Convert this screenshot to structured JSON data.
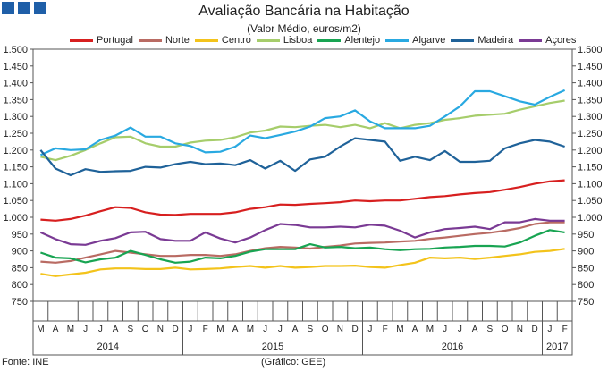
{
  "title": "Avaliação Bancária na Habitação",
  "subtitle": "(Valor Médio, euros/m2)",
  "source": "Fonte: INE",
  "credit": "(Gráfico: GEE)",
  "chart_data": {
    "type": "line",
    "ylim": [
      750,
      1500
    ],
    "yticks": [
      750,
      800,
      850,
      900,
      950,
      1000,
      1050,
      1100,
      1150,
      1200,
      1250,
      1300,
      1350,
      1400,
      1450,
      1500
    ],
    "ytick_labels": [
      "750",
      "800",
      "850",
      "900",
      "950",
      "1.000",
      "1.050",
      "1.100",
      "1.150",
      "1.200",
      "1.250",
      "1.300",
      "1.350",
      "1.400",
      "1.450",
      "1.500"
    ],
    "x": [
      "M",
      "A",
      "M",
      "J",
      "J",
      "A",
      "S",
      "O",
      "N",
      "D",
      "J",
      "F",
      "M",
      "A",
      "M",
      "J",
      "J",
      "A",
      "S",
      "O",
      "N",
      "D",
      "J",
      "F",
      "M",
      "A",
      "M",
      "J",
      "J",
      "A",
      "S",
      "O",
      "N",
      "D",
      "J",
      "F"
    ],
    "years": [
      {
        "label": "2014",
        "start": 0,
        "end": 9
      },
      {
        "label": "2015",
        "start": 10,
        "end": 21
      },
      {
        "label": "2016",
        "start": 22,
        "end": 33
      },
      {
        "label": "2017",
        "start": 34,
        "end": 35
      }
    ],
    "series": [
      {
        "name": "Portugal",
        "color": "#d71f1f",
        "values": [
          993,
          990,
          995,
          1005,
          1018,
          1030,
          1028,
          1015,
          1008,
          1007,
          1010,
          1010,
          1010,
          1015,
          1025,
          1030,
          1038,
          1037,
          1040,
          1042,
          1045,
          1050,
          1048,
          1050,
          1050,
          1055,
          1060,
          1063,
          1068,
          1072,
          1075,
          1082,
          1090,
          1100,
          1107,
          1110
        ]
      },
      {
        "name": "Norte",
        "color": "#b96b63",
        "values": [
          868,
          865,
          870,
          880,
          890,
          900,
          895,
          890,
          885,
          885,
          888,
          888,
          885,
          890,
          900,
          908,
          912,
          910,
          907,
          912,
          916,
          922,
          924,
          925,
          928,
          930,
          936,
          940,
          945,
          950,
          954,
          960,
          968,
          980,
          985,
          985
        ]
      },
      {
        "name": "Centro",
        "color": "#f3c31b",
        "values": [
          832,
          825,
          830,
          835,
          845,
          848,
          848,
          846,
          846,
          850,
          845,
          846,
          848,
          852,
          855,
          850,
          855,
          850,
          852,
          855,
          855,
          856,
          852,
          850,
          858,
          865,
          880,
          878,
          880,
          876,
          880,
          885,
          890,
          897,
          900,
          906
        ]
      },
      {
        "name": "Lisboa",
        "color": "#a6cd6b",
        "values": [
          1180,
          1170,
          1183,
          1200,
          1220,
          1238,
          1240,
          1220,
          1210,
          1210,
          1222,
          1228,
          1230,
          1238,
          1252,
          1258,
          1270,
          1268,
          1272,
          1275,
          1268,
          1275,
          1265,
          1280,
          1265,
          1275,
          1280,
          1290,
          1295,
          1302,
          1305,
          1308,
          1320,
          1330,
          1340,
          1347
        ]
      },
      {
        "name": "Alentejo",
        "color": "#18a452",
        "values": [
          895,
          880,
          878,
          866,
          875,
          880,
          900,
          888,
          875,
          865,
          868,
          880,
          878,
          885,
          898,
          905,
          905,
          905,
          920,
          910,
          912,
          908,
          910,
          905,
          902,
          905,
          906,
          910,
          912,
          915,
          915,
          913,
          925,
          945,
          962,
          955
        ]
      },
      {
        "name": "Algarve",
        "color": "#29a9e1",
        "values": [
          1185,
          1205,
          1200,
          1202,
          1230,
          1243,
          1267,
          1240,
          1240,
          1220,
          1212,
          1193,
          1195,
          1210,
          1243,
          1235,
          1245,
          1255,
          1270,
          1295,
          1300,
          1318,
          1285,
          1265,
          1265,
          1265,
          1272,
          1300,
          1330,
          1375,
          1375,
          1360,
          1345,
          1335,
          1358,
          1378
        ]
      },
      {
        "name": "Madeira",
        "color": "#1f6299",
        "values": [
          1200,
          1145,
          1125,
          1143,
          1135,
          1137,
          1138,
          1150,
          1148,
          1158,
          1165,
          1158,
          1160,
          1155,
          1170,
          1145,
          1168,
          1138,
          1172,
          1180,
          1210,
          1235,
          1230,
          1225,
          1168,
          1180,
          1170,
          1197,
          1165,
          1165,
          1168,
          1205,
          1220,
          1230,
          1225,
          1210
        ]
      },
      {
        "name": "Açores",
        "color": "#7a3a94",
        "values": [
          955,
          935,
          920,
          918,
          930,
          938,
          955,
          957,
          935,
          930,
          930,
          955,
          937,
          925,
          940,
          962,
          980,
          977,
          970,
          970,
          972,
          970,
          978,
          975,
          960,
          940,
          955,
          965,
          968,
          972,
          965,
          985,
          985,
          995,
          990,
          990
        ]
      }
    ]
  }
}
